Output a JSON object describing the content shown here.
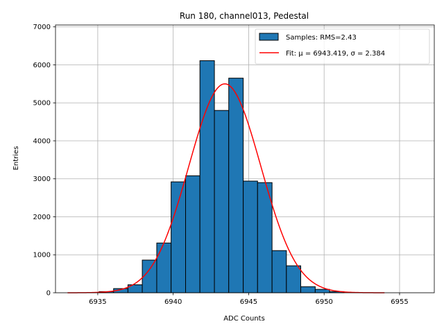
{
  "chart_data": {
    "type": "bar",
    "title": "Run 180, channel013, Pedestal",
    "xlabel": "ADC Counts",
    "ylabel": "Entries",
    "xlim": [
      6932.2,
      6957.3
    ],
    "ylim": [
      0,
      7050
    ],
    "xticks": [
      6935,
      6940,
      6945,
      6950,
      6955
    ],
    "yticks": [
      0,
      1000,
      2000,
      3000,
      4000,
      5000,
      6000,
      7000
    ],
    "grid": true,
    "legend_placement": "top-right",
    "bar_color": "#1f77b4",
    "bar_edge_color": "#000000",
    "fit_color": "#ff0000",
    "histogram": {
      "name": "Samples: RMS=2.43",
      "bins": [
        {
          "x0": 6935.09,
          "x1": 6936.05,
          "value": 30
        },
        {
          "x0": 6936.05,
          "x1": 6937.0,
          "value": 110
        },
        {
          "x0": 6937.0,
          "x1": 6937.95,
          "value": 210
        },
        {
          "x0": 6937.95,
          "x1": 6938.91,
          "value": 860
        },
        {
          "x0": 6938.91,
          "x1": 6939.86,
          "value": 1310
        },
        {
          "x0": 6939.86,
          "x1": 6940.82,
          "value": 2920
        },
        {
          "x0": 6940.82,
          "x1": 6941.77,
          "value": 3080
        },
        {
          "x0": 6941.77,
          "x1": 6942.73,
          "value": 6110
        },
        {
          "x0": 6942.73,
          "x1": 6943.68,
          "value": 4800
        },
        {
          "x0": 6943.68,
          "x1": 6944.64,
          "value": 5650
        },
        {
          "x0": 6944.64,
          "x1": 6945.59,
          "value": 2940
        },
        {
          "x0": 6945.59,
          "x1": 6946.55,
          "value": 2900
        },
        {
          "x0": 6946.55,
          "x1": 6947.5,
          "value": 1110
        },
        {
          "x0": 6947.5,
          "x1": 6948.45,
          "value": 710
        },
        {
          "x0": 6948.45,
          "x1": 6949.41,
          "value": 160
        },
        {
          "x0": 6949.41,
          "x1": 6950.36,
          "value": 90
        },
        {
          "x0": 6950.36,
          "x1": 6951.32,
          "value": 30
        }
      ]
    },
    "fit": {
      "name": "Fit: μ = 6943.419, σ = 2.384",
      "mu": 6943.419,
      "sigma": 2.384,
      "amplitude": 5500,
      "x_range": [
        6933.0,
        6954.0
      ]
    }
  }
}
